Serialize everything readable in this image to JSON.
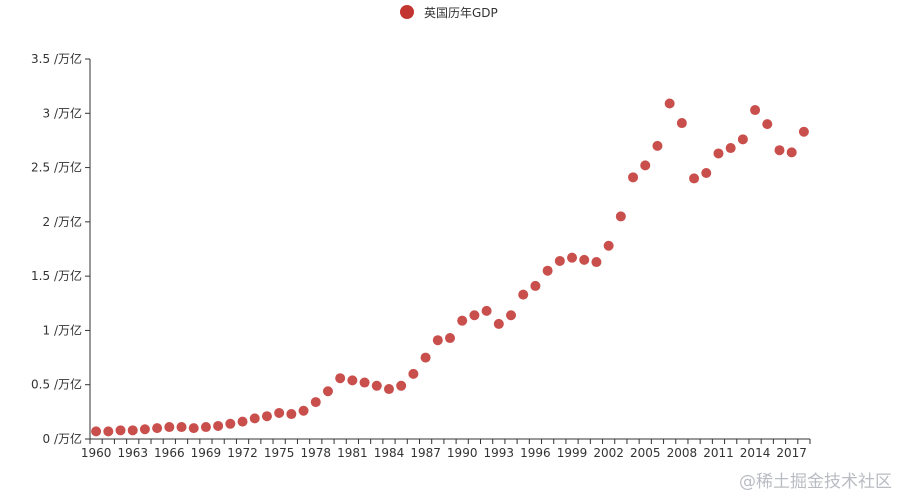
{
  "legend": {
    "label": "英国历年GDP",
    "color": "#c23531"
  },
  "watermark": "@稀土掘金技术社区",
  "chart_data": {
    "type": "scatter",
    "series": [
      {
        "name": "英国历年GDP",
        "color": "#c23531",
        "x": [
          1960,
          1961,
          1962,
          1963,
          1964,
          1965,
          1966,
          1967,
          1968,
          1969,
          1970,
          1971,
          1972,
          1973,
          1974,
          1975,
          1976,
          1977,
          1978,
          1979,
          1980,
          1981,
          1982,
          1983,
          1984,
          1985,
          1986,
          1987,
          1988,
          1989,
          1990,
          1991,
          1992,
          1993,
          1994,
          1995,
          1996,
          1997,
          1998,
          1999,
          2000,
          2001,
          2002,
          2003,
          2004,
          2005,
          2006,
          2007,
          2008,
          2009,
          2010,
          2011,
          2012,
          2013,
          2014,
          2015,
          2016,
          2017,
          2018
        ],
        "y": [
          0.07,
          0.07,
          0.08,
          0.08,
          0.09,
          0.1,
          0.11,
          0.11,
          0.1,
          0.11,
          0.12,
          0.14,
          0.16,
          0.19,
          0.21,
          0.24,
          0.23,
          0.26,
          0.34,
          0.44,
          0.56,
          0.54,
          0.52,
          0.49,
          0.46,
          0.49,
          0.6,
          0.75,
          0.91,
          0.93,
          1.09,
          1.14,
          1.18,
          1.06,
          1.14,
          1.33,
          1.41,
          1.55,
          1.64,
          1.67,
          1.65,
          1.63,
          1.78,
          2.05,
          2.41,
          2.52,
          2.7,
          3.09,
          2.91,
          2.4,
          2.45,
          2.63,
          2.68,
          2.76,
          3.03,
          2.9,
          2.66,
          2.64,
          2.83
        ]
      }
    ],
    "x_tick_labels": [
      "1960",
      "1963",
      "1966",
      "1969",
      "1972",
      "1975",
      "1978",
      "1981",
      "1984",
      "1987",
      "1990",
      "1993",
      "1996",
      "1999",
      "2002",
      "2005",
      "2008",
      "2011",
      "2014",
      "2017"
    ],
    "y_ticks": [
      0,
      0.5,
      1,
      1.5,
      2,
      2.5,
      3,
      3.5
    ],
    "y_tick_labels": [
      "0 /万亿",
      "0.5 /万亿",
      "1 /万亿",
      "1.5 /万亿",
      "2 /万亿",
      "2.5 /万亿",
      "3 /万亿",
      "3.5 /万亿"
    ],
    "ylim": [
      0,
      3.5
    ],
    "grid": false,
    "legend_position": "top-center"
  }
}
